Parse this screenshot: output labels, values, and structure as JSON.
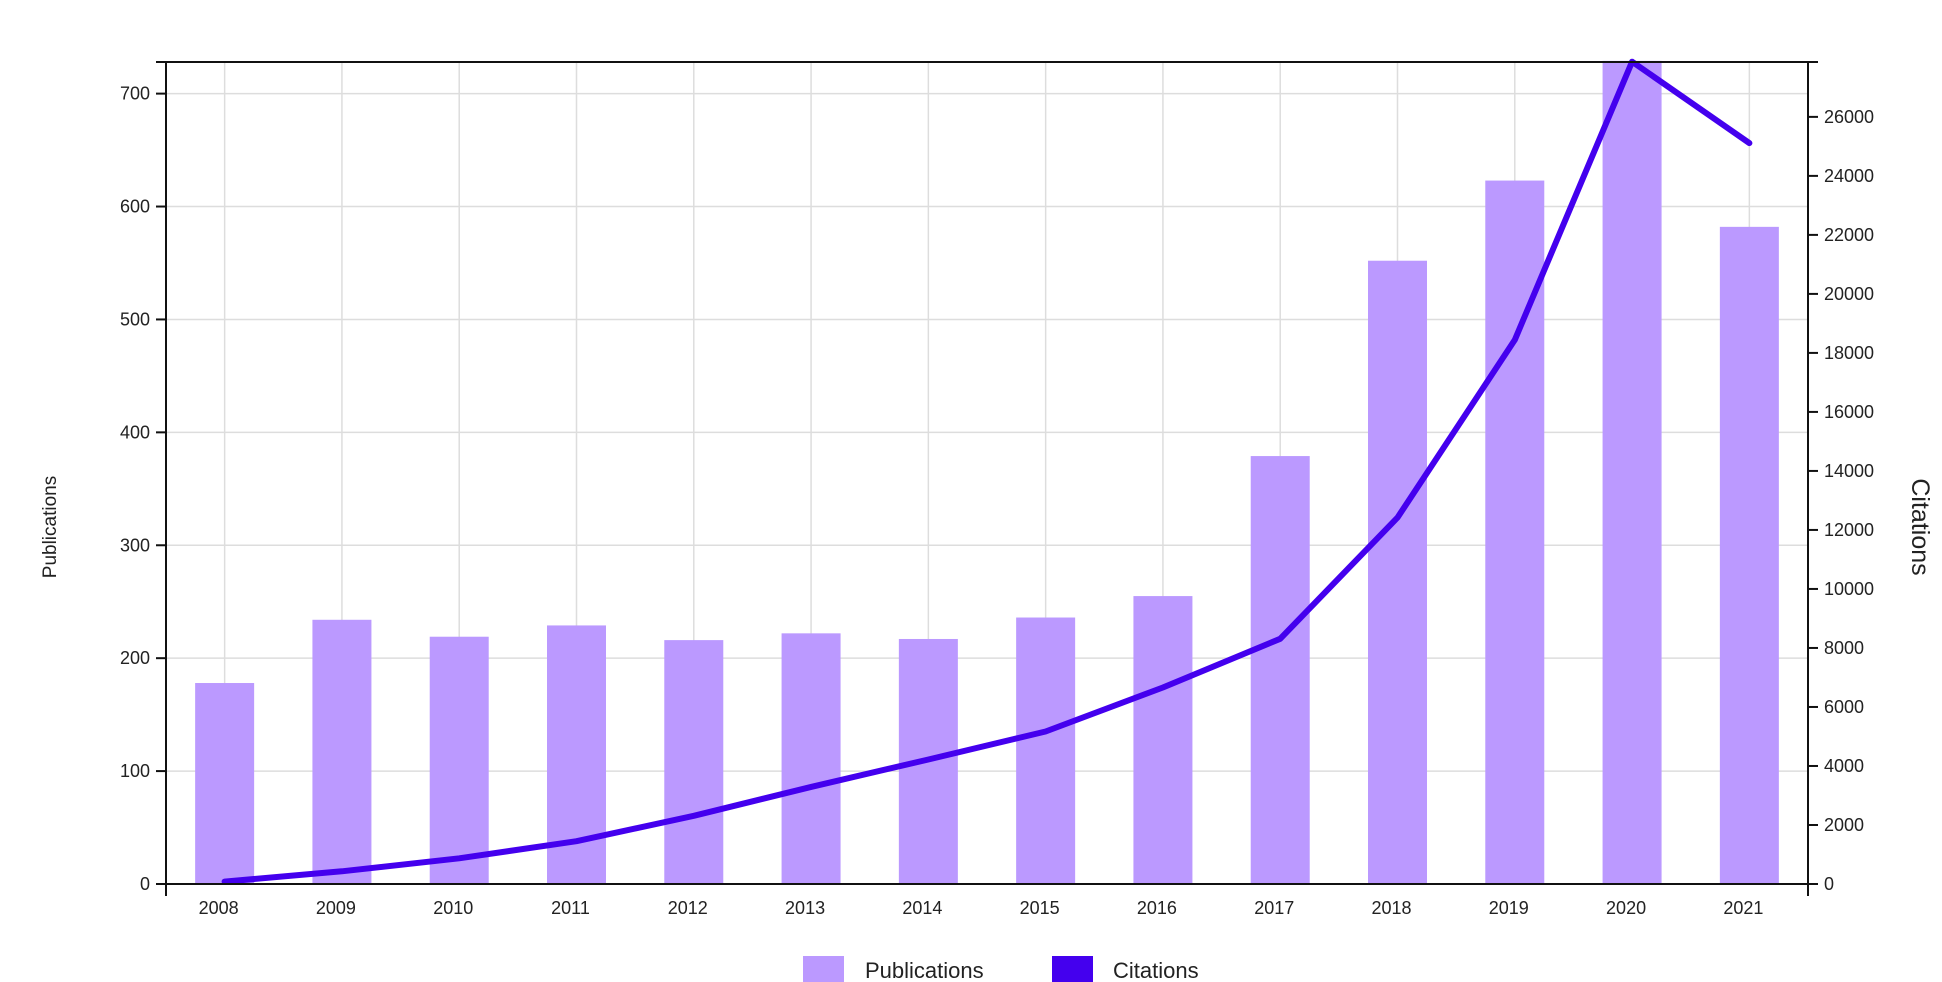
{
  "chart_data": {
    "type": "bar",
    "categories": [
      "2008",
      "2009",
      "2010",
      "2011",
      "2012",
      "2013",
      "2014",
      "2015",
      "2016",
      "2017",
      "2018",
      "2019",
      "2020",
      "2021"
    ],
    "series": [
      {
        "name": "Publications",
        "type": "bar",
        "axis": "left",
        "color": "#bb99ff",
        "values": [
          178,
          234,
          219,
          229,
          216,
          222,
          217,
          236,
          255,
          379,
          552,
          623,
          729,
          582
        ]
      },
      {
        "name": "Citations",
        "type": "line",
        "axis": "right",
        "color": "#4400ee",
        "values": [
          80,
          430,
          870,
          1450,
          2310,
          3290,
          4220,
          5170,
          6660,
          8310,
          12420,
          18440,
          27870,
          25110
        ]
      }
    ],
    "left_axis": {
      "label": "Publications",
      "range": [
        0,
        728
      ],
      "ticks": [
        0,
        100,
        200,
        300,
        400,
        500,
        600,
        700
      ]
    },
    "right_axis": {
      "label": "Citations",
      "range": [
        0,
        27860
      ],
      "ticks": [
        0,
        2000,
        4000,
        6000,
        8000,
        10000,
        12000,
        14000,
        16000,
        18000,
        20000,
        22000,
        24000,
        26000
      ]
    },
    "xlabel": "",
    "grid": true,
    "legend_position": "bottom-center"
  }
}
